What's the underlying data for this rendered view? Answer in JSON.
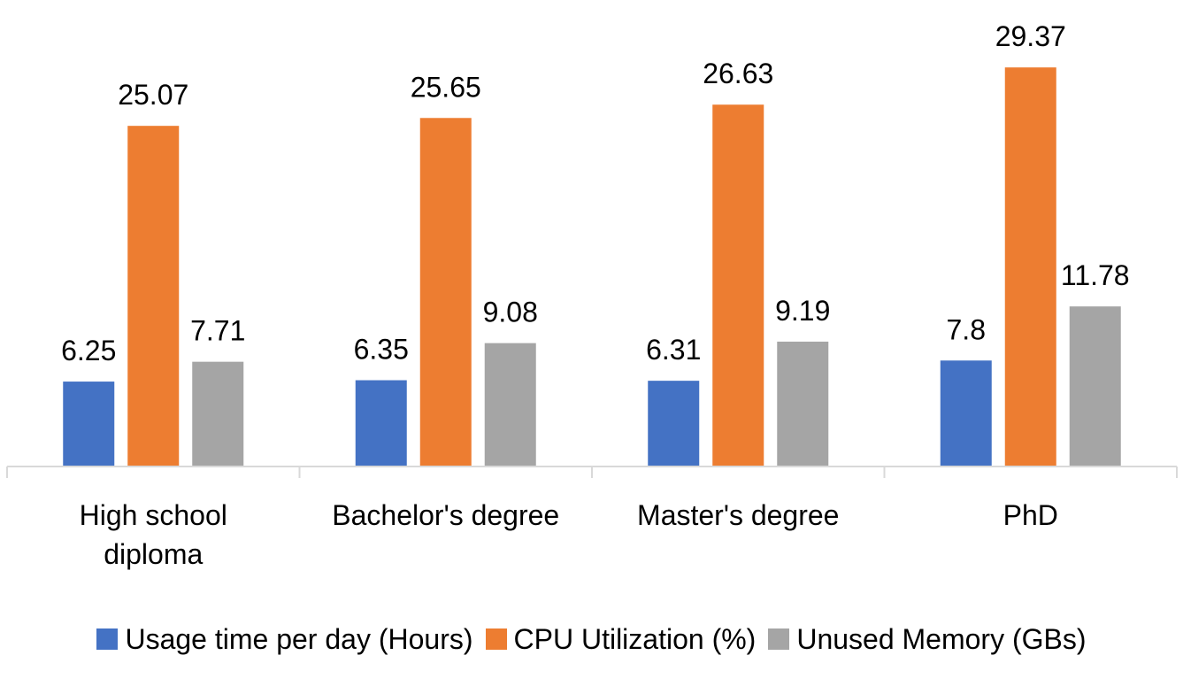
{
  "colors": {
    "series": [
      "#4472C4",
      "#ED7D31",
      "#A5A5A5"
    ],
    "axis": "#D9D9D9"
  },
  "chart_data": {
    "type": "bar",
    "categories": [
      [
        "High school",
        "diploma"
      ],
      [
        "Bachelor's degree"
      ],
      [
        "Master's degree"
      ],
      [
        "PhD"
      ]
    ],
    "series": [
      {
        "name": "Usage time per day (Hours)",
        "values": [
          6.25,
          6.35,
          6.31,
          7.8
        ],
        "labels": [
          "6.25",
          "6.35",
          "6.31",
          "7.8"
        ]
      },
      {
        "name": "CPU Utilization (%)",
        "values": [
          25.07,
          25.65,
          26.63,
          29.37
        ],
        "labels": [
          "25.07",
          "25.65",
          "26.63",
          "29.37"
        ]
      },
      {
        "name": "Unused Memory (GBs)",
        "values": [
          7.71,
          9.08,
          9.19,
          11.78
        ],
        "labels": [
          "7.71",
          "9.08",
          "9.19",
          "11.78"
        ]
      }
    ],
    "ylim": [
      0,
      30
    ],
    "grid": false,
    "legend": "bottom"
  }
}
